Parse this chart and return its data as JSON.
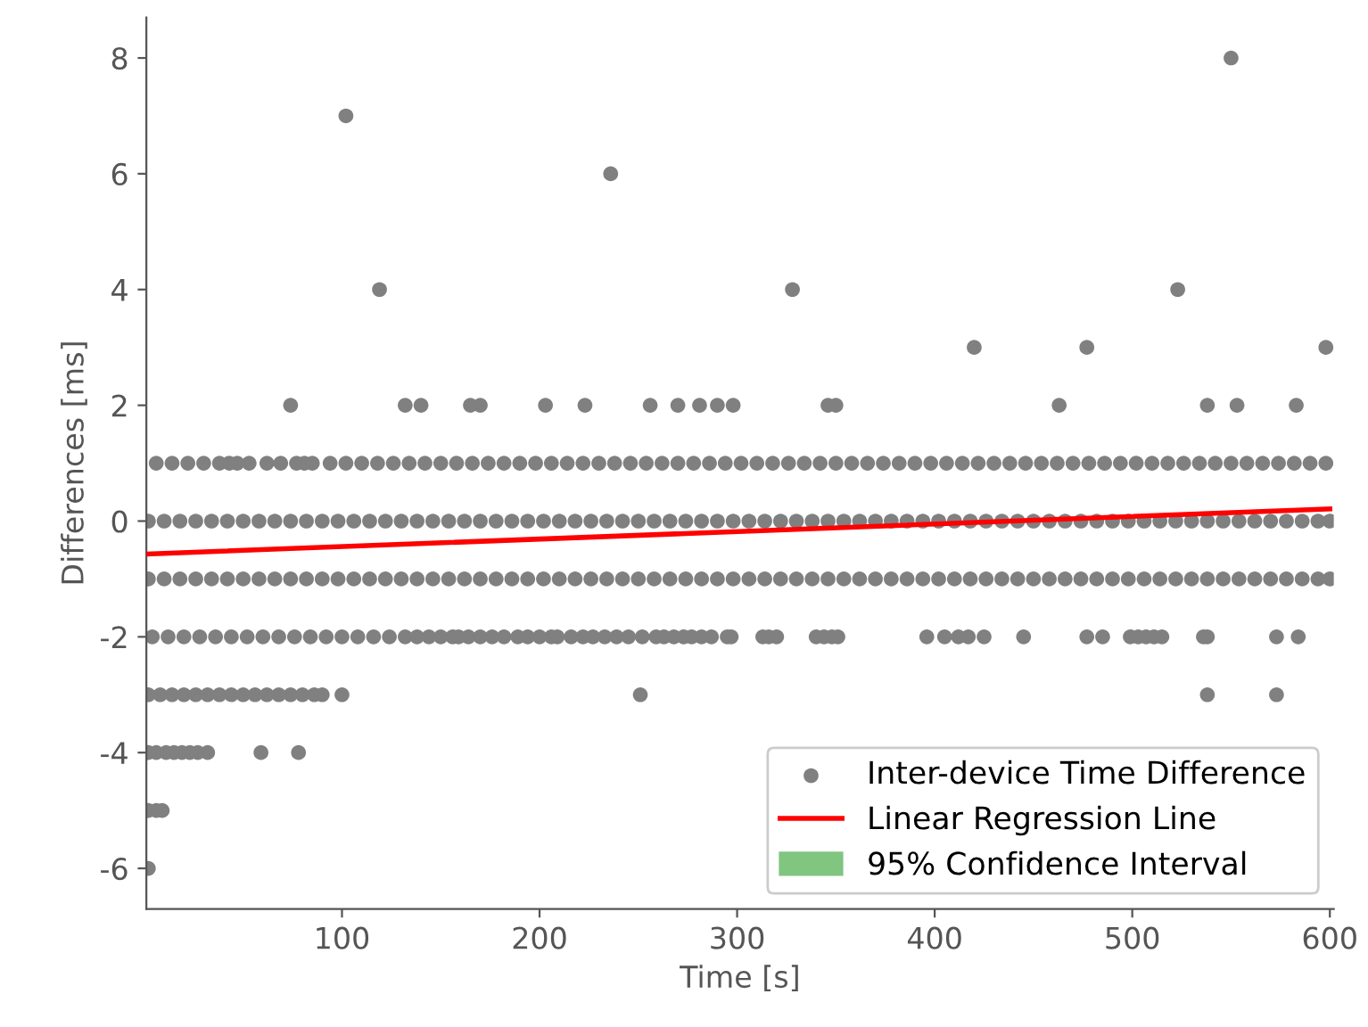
{
  "chart_data": {
    "type": "scatter",
    "xlabel": "Time [s]",
    "ylabel": "Differences [ms]",
    "xlim": [
      1,
      602
    ],
    "xticks": [
      100,
      200,
      300,
      400,
      500,
      600
    ],
    "ylim": [
      -6.7,
      8.7
    ],
    "yticks": [
      -6,
      -4,
      -2,
      0,
      2,
      4,
      6,
      8
    ],
    "grid": false,
    "legend": "bottom right",
    "series": [
      {
        "name": "Inter-device Time Difference",
        "marker": "circle",
        "color": "#808080",
        "x": [
          2,
          10,
          18,
          26,
          34,
          42,
          50,
          58,
          66,
          74,
          82,
          90,
          98,
          106,
          114,
          122,
          130,
          138,
          146,
          154,
          162,
          170,
          178,
          186,
          194,
          202,
          210,
          218,
          226,
          234,
          242,
          250,
          258,
          266,
          274,
          282,
          290,
          298,
          306,
          314,
          322,
          330,
          338,
          346,
          354,
          362,
          370,
          378,
          386,
          394,
          402,
          410,
          418,
          426,
          434,
          442,
          450,
          458,
          466,
          474,
          482,
          490,
          498,
          506,
          514,
          522,
          530,
          538,
          546,
          554,
          562,
          570,
          578,
          586,
          594,
          600,
          2,
          10,
          18,
          26,
          34,
          42,
          50,
          58,
          66,
          74,
          82,
          90,
          98,
          106,
          114,
          122,
          130,
          138,
          146,
          154,
          162,
          170,
          178,
          186,
          194,
          202,
          210,
          218,
          226,
          234,
          242,
          250,
          258,
          266,
          274,
          282,
          290,
          298,
          306,
          314,
          322,
          330,
          338,
          346,
          354,
          362,
          370,
          378,
          386,
          394,
          402,
          410,
          418,
          426,
          434,
          442,
          450,
          458,
          466,
          474,
          482,
          490,
          498,
          506,
          514,
          522,
          530,
          538,
          546,
          554,
          562,
          570,
          578,
          586,
          594,
          600,
          6,
          14,
          22,
          30,
          38,
          43,
          47,
          53,
          62,
          69,
          77,
          81,
          85,
          94,
          102,
          110,
          118,
          126,
          134,
          142,
          150,
          158,
          166,
          174,
          182,
          190,
          198,
          206,
          214,
          222,
          230,
          238,
          246,
          254,
          262,
          270,
          278,
          286,
          294,
          302,
          310,
          318,
          326,
          334,
          342,
          350,
          358,
          366,
          374,
          382,
          390,
          398,
          406,
          414,
          422,
          430,
          438,
          446,
          454,
          462,
          470,
          478,
          486,
          494,
          502,
          510,
          518,
          526,
          534,
          542,
          550,
          558,
          566,
          574,
          582,
          590,
          598,
          4,
          12,
          20,
          28,
          36,
          44,
          52,
          60,
          68,
          76,
          84,
          92,
          100,
          108,
          116,
          124,
          132,
          138,
          144,
          150,
          156,
          159,
          164,
          170,
          176,
          182,
          189,
          194,
          200,
          206,
          209,
          216,
          222,
          227,
          233,
          239,
          245,
          252,
          259,
          263,
          268,
          273,
          277,
          282,
          287,
          295,
          297,
          313,
          316,
          320,
          340,
          344,
          348,
          351,
          396,
          405,
          412,
          417,
          425,
          445,
          477,
          485,
          499,
          503,
          507,
          511,
          515,
          536,
          538,
          573,
          584,
          2,
          8,
          14,
          20,
          26,
          32,
          38,
          44,
          50,
          56,
          62,
          68,
          74,
          80,
          86,
          90,
          100,
          251,
          538,
          573,
          2,
          6,
          11,
          15,
          19,
          23,
          27,
          32,
          59,
          78,
          2,
          6,
          9,
          2,
          74,
          132,
          140,
          165,
          170,
          203,
          223,
          256,
          270,
          281,
          290,
          298,
          346,
          350,
          463,
          538,
          553,
          583,
          420,
          477,
          598,
          119,
          328,
          523,
          236,
          102,
          550
        ],
        "values": [
          0,
          0,
          0,
          0,
          0,
          0,
          0,
          0,
          0,
          0,
          0,
          0,
          0,
          0,
          0,
          0,
          0,
          0,
          0,
          0,
          0,
          0,
          0,
          0,
          0,
          0,
          0,
          0,
          0,
          0,
          0,
          0,
          0,
          0,
          0,
          0,
          0,
          0,
          0,
          0,
          0,
          0,
          0,
          0,
          0,
          0,
          0,
          0,
          0,
          0,
          0,
          0,
          0,
          0,
          0,
          0,
          0,
          0,
          0,
          0,
          0,
          0,
          0,
          0,
          0,
          0,
          0,
          0,
          0,
          0,
          0,
          0,
          0,
          0,
          0,
          0,
          -1,
          -1,
          -1,
          -1,
          -1,
          -1,
          -1,
          -1,
          -1,
          -1,
          -1,
          -1,
          -1,
          -1,
          -1,
          -1,
          -1,
          -1,
          -1,
          -1,
          -1,
          -1,
          -1,
          -1,
          -1,
          -1,
          -1,
          -1,
          -1,
          -1,
          -1,
          -1,
          -1,
          -1,
          -1,
          -1,
          -1,
          -1,
          -1,
          -1,
          -1,
          -1,
          -1,
          -1,
          -1,
          -1,
          -1,
          -1,
          -1,
          -1,
          -1,
          -1,
          -1,
          -1,
          -1,
          -1,
          -1,
          -1,
          -1,
          -1,
          -1,
          -1,
          -1,
          -1,
          -1,
          -1,
          -1,
          -1,
          -1,
          -1,
          -1,
          -1,
          -1,
          -1,
          -1,
          -1,
          1,
          1,
          1,
          1,
          1,
          1,
          1,
          1,
          1,
          1,
          1,
          1,
          1,
          1,
          1,
          1,
          1,
          1,
          1,
          1,
          1,
          1,
          1,
          1,
          1,
          1,
          1,
          1,
          1,
          1,
          1,
          1,
          1,
          1,
          1,
          1,
          1,
          1,
          1,
          1,
          1,
          1,
          1,
          1,
          1,
          1,
          1,
          1,
          1,
          1,
          1,
          1,
          1,
          1,
          1,
          1,
          1,
          1,
          1,
          1,
          1,
          1,
          1,
          1,
          1,
          1,
          1,
          1,
          1,
          1,
          1,
          1,
          1,
          1,
          1,
          1,
          1,
          -2,
          -2,
          -2,
          -2,
          -2,
          -2,
          -2,
          -2,
          -2,
          -2,
          -2,
          -2,
          -2,
          -2,
          -2,
          -2,
          -2,
          -2,
          -2,
          -2,
          -2,
          -2,
          -2,
          -2,
          -2,
          -2,
          -2,
          -2,
          -2,
          -2,
          -2,
          -2,
          -2,
          -2,
          -2,
          -2,
          -2,
          -2,
          -2,
          -2,
          -2,
          -2,
          -2,
          -2,
          -2,
          -2,
          -2,
          -2,
          -2,
          -2,
          -2,
          -2,
          -2,
          -2,
          -2,
          -2,
          -2,
          -2,
          -2,
          -2,
          -2,
          -2,
          -2,
          -2,
          -2,
          -2,
          -2,
          -2,
          -2,
          -2,
          -2,
          -3,
          -3,
          -3,
          -3,
          -3,
          -3,
          -3,
          -3,
          -3,
          -3,
          -3,
          -3,
          -3,
          -3,
          -3,
          -3,
          -3,
          -3,
          -3,
          -3,
          -4,
          -4,
          -4,
          -4,
          -4,
          -4,
          -4,
          -4,
          -4,
          -4,
          -5,
          -5,
          -5,
          -6,
          2,
          2,
          2,
          2,
          2,
          2,
          2,
          2,
          2,
          2,
          2,
          2,
          2,
          2,
          2,
          2,
          2,
          2,
          3,
          3,
          3,
          4,
          4,
          4,
          6,
          7,
          8
        ]
      },
      {
        "name": "Linear Regression Line",
        "type": "line",
        "color": "#ff0000",
        "x": [
          1,
          600
        ],
        "values": [
          -0.57,
          0.21
        ]
      },
      {
        "name": "95% Confidence Interval",
        "type": "area",
        "color": "#2ca02c"
      }
    ]
  }
}
